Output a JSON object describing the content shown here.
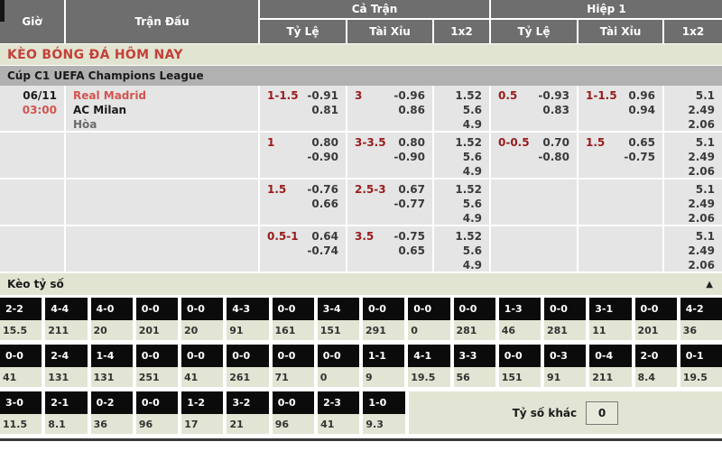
{
  "colors": {
    "header_bg": "#6e6e6e",
    "pale_green": "#e0e4d0",
    "league_bar_bg": "#b1b1b1",
    "row_bg": "#e5e5e5",
    "handicap_red": "#991b1b",
    "accent_red": "#c4403a",
    "score_cell_black": "#0b0b0b"
  },
  "header": {
    "gio": "Giờ",
    "tran_dau": "Trận Đấu",
    "ca_tran": "Cả Trận",
    "hiep1": "Hiệp 1",
    "ty_le_ft": "Tỷ Lệ",
    "tai_xiu_ft": "Tài Xỉu",
    "one_x_two_ft": "1x2",
    "ty_le_h1": "Tỷ Lệ",
    "tai_xiu_h1": "Tài Xỉu",
    "one_x_two_h1": "1x2"
  },
  "title": "KÈO BÓNG ĐÁ HÔM NAY",
  "league": "Cúp C1 UEFA Champions League",
  "odds_rows": [
    {
      "date": "06/11",
      "time": "03:00",
      "home": "Real Madrid",
      "away": "AC Milan",
      "draw": "Hòa",
      "ft_hc": "1-1.5",
      "ft_hc1": "-0.91",
      "ft_hc2": "0.81",
      "ft_ou": "3",
      "ft_ou1": "-0.96",
      "ft_ou2": "0.86",
      "ft_1": "1.52",
      "ft_x": "5.6",
      "ft_2": "4.9",
      "h1_hc": "0.5",
      "h1_hc1": "-0.93",
      "h1_hc2": "0.83",
      "h1_ou": "1-1.5",
      "h1_ou1": "0.96",
      "h1_ou2": "0.94",
      "h1_1": "5.1",
      "h1_x": "2.49",
      "h1_2": "2.06"
    },
    {
      "date": "",
      "time": "",
      "home": "",
      "away": "",
      "draw": "",
      "ft_hc": "1",
      "ft_hc1": "0.80",
      "ft_hc2": "-0.90",
      "ft_ou": "3-3.5",
      "ft_ou1": "0.80",
      "ft_ou2": "-0.90",
      "ft_1": "1.52",
      "ft_x": "5.6",
      "ft_2": "4.9",
      "h1_hc": "0-0.5",
      "h1_hc1": "0.70",
      "h1_hc2": "-0.80",
      "h1_ou": "1.5",
      "h1_ou1": "0.65",
      "h1_ou2": "-0.75",
      "h1_1": "5.1",
      "h1_x": "2.49",
      "h1_2": "2.06"
    },
    {
      "date": "",
      "time": "",
      "home": "",
      "away": "",
      "draw": "",
      "ft_hc": "1.5",
      "ft_hc1": "-0.76",
      "ft_hc2": "0.66",
      "ft_ou": "2.5-3",
      "ft_ou1": "0.67",
      "ft_ou2": "-0.77",
      "ft_1": "1.52",
      "ft_x": "5.6",
      "ft_2": "4.9",
      "h1_hc": "",
      "h1_hc1": "",
      "h1_hc2": "",
      "h1_ou": "",
      "h1_ou1": "",
      "h1_ou2": "",
      "h1_1": "5.1",
      "h1_x": "2.49",
      "h1_2": "2.06"
    },
    {
      "date": "",
      "time": "",
      "home": "",
      "away": "",
      "draw": "",
      "ft_hc": "0.5-1",
      "ft_hc1": "0.64",
      "ft_hc2": "-0.74",
      "ft_ou": "3.5",
      "ft_ou1": "-0.75",
      "ft_ou2": "0.65",
      "ft_1": "1.52",
      "ft_x": "5.6",
      "ft_2": "4.9",
      "h1_hc": "",
      "h1_hc1": "",
      "h1_hc2": "",
      "h1_ou": "",
      "h1_ou1": "",
      "h1_ou2": "",
      "h1_1": "5.1",
      "h1_x": "2.49",
      "h1_2": "2.06"
    }
  ],
  "score_section": {
    "title": "Kèo tỷ số",
    "collapse_icon": "▲",
    "rows": [
      [
        {
          "s": "2-2",
          "v": "15.5"
        },
        {
          "s": "4-4",
          "v": "211"
        },
        {
          "s": "4-0",
          "v": "20"
        },
        {
          "s": "0-0",
          "v": "201"
        },
        {
          "s": "0-0",
          "v": "20"
        },
        {
          "s": "4-3",
          "v": "91"
        },
        {
          "s": "0-0",
          "v": "161"
        },
        {
          "s": "3-4",
          "v": "151"
        },
        {
          "s": "0-0",
          "v": "291"
        },
        {
          "s": "0-0",
          "v": "0"
        },
        {
          "s": "0-0",
          "v": "281"
        },
        {
          "s": "1-3",
          "v": "46"
        },
        {
          "s": "0-0",
          "v": "281"
        },
        {
          "s": "3-1",
          "v": "11"
        },
        {
          "s": "0-0",
          "v": "201"
        },
        {
          "s": "4-2",
          "v": "36"
        }
      ],
      [
        {
          "s": "0-0",
          "v": "41"
        },
        {
          "s": "2-4",
          "v": "131"
        },
        {
          "s": "1-4",
          "v": "131"
        },
        {
          "s": "0-0",
          "v": "251"
        },
        {
          "s": "0-0",
          "v": "41"
        },
        {
          "s": "0-0",
          "v": "261"
        },
        {
          "s": "0-0",
          "v": "71"
        },
        {
          "s": "0-0",
          "v": "0"
        },
        {
          "s": "1-1",
          "v": "9"
        },
        {
          "s": "4-1",
          "v": "19.5"
        },
        {
          "s": "3-3",
          "v": "56"
        },
        {
          "s": "0-0",
          "v": "151"
        },
        {
          "s": "0-3",
          "v": "91"
        },
        {
          "s": "0-4",
          "v": "211"
        },
        {
          "s": "2-0",
          "v": "8.4"
        },
        {
          "s": "0-1",
          "v": "19.5"
        }
      ],
      [
        {
          "s": "3-0",
          "v": "11.5"
        },
        {
          "s": "2-1",
          "v": "8.1"
        },
        {
          "s": "0-2",
          "v": "36"
        },
        {
          "s": "0-0",
          "v": "96"
        },
        {
          "s": "1-2",
          "v": "17"
        },
        {
          "s": "3-2",
          "v": "21"
        },
        {
          "s": "0-0",
          "v": "96"
        },
        {
          "s": "2-3",
          "v": "41"
        },
        {
          "s": "1-0",
          "v": "9.3"
        }
      ]
    ],
    "other_label": "Tỷ số khác",
    "other_value": "0"
  }
}
